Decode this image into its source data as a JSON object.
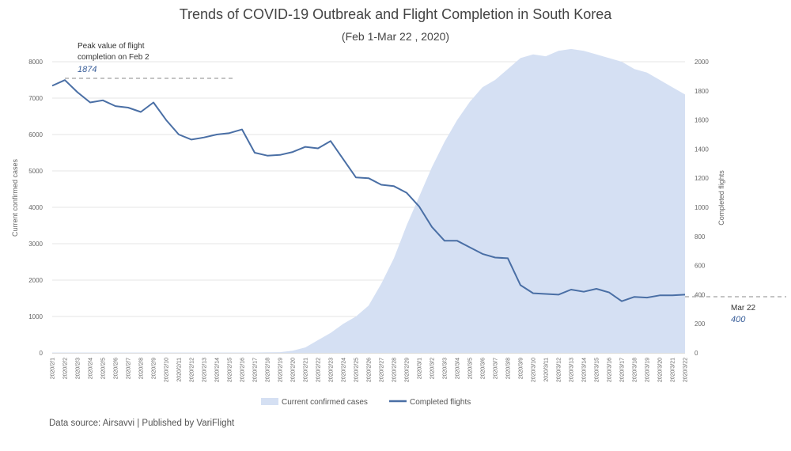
{
  "chart_data": {
    "type": "line",
    "title": "Trends of COVID-19 Outbreak and Flight Completion in South Korea",
    "subtitle": "(Feb 1-Mar 22 , 2020)",
    "y_left_label": "Current confirmed cases",
    "y_right_label": "Completed flights",
    "y_left_lim": [
      0,
      8000
    ],
    "y_right_lim": [
      0,
      2000
    ],
    "y_left_ticks": [
      "0",
      "1000",
      "2000",
      "3000",
      "4000",
      "5000",
      "6000",
      "7000",
      "8000"
    ],
    "y_right_ticks": [
      "0",
      "200",
      "400",
      "600",
      "800",
      "1000",
      "1200",
      "1400",
      "1600",
      "1800",
      "2000"
    ],
    "grid": true,
    "legend_position": "bottom",
    "x": [
      "2020/2/1",
      "2020/2/2",
      "2020/2/3",
      "2020/2/4",
      "2020/2/5",
      "2020/2/6",
      "2020/2/7",
      "2020/2/8",
      "2020/2/9",
      "2020/2/10",
      "2020/2/11",
      "2020/2/12",
      "2020/2/13",
      "2020/2/14",
      "2020/2/15",
      "2020/2/16",
      "2020/2/17",
      "2020/2/18",
      "2020/2/19",
      "2020/2/20",
      "2020/2/21",
      "2020/2/22",
      "2020/2/23",
      "2020/2/24",
      "2020/2/25",
      "2020/2/26",
      "2020/2/27",
      "2020/2/28",
      "2020/2/29",
      "2020/3/1",
      "2020/3/2",
      "2020/3/3",
      "2020/3/4",
      "2020/3/5",
      "2020/3/6",
      "2020/3/7",
      "2020/3/8",
      "2020/3/9",
      "2020/3/10",
      "2020/3/11",
      "2020/3/12",
      "2020/3/13",
      "2020/3/14",
      "2020/3/15",
      "2020/3/16",
      "2020/3/17",
      "2020/3/18",
      "2020/3/19",
      "2020/3/20",
      "2020/3/21",
      "2020/3/22"
    ],
    "series": [
      {
        "name": "Current confirmed cases",
        "type": "area",
        "axis": "left",
        "color": "#d5e0f3",
        "values": [
          10,
          10,
          10,
          10,
          10,
          10,
          10,
          10,
          10,
          10,
          10,
          10,
          10,
          10,
          10,
          10,
          10,
          15,
          20,
          60,
          150,
          350,
          550,
          800,
          1000,
          1300,
          1900,
          2600,
          3500,
          4300,
          5100,
          5800,
          6400,
          6900,
          7300,
          7500,
          7800,
          8100,
          8200,
          8150,
          8300,
          8350,
          8300,
          8200,
          8100,
          8000,
          7800,
          7700,
          7500,
          7300,
          7100
        ]
      },
      {
        "name": "Completed flights",
        "type": "line",
        "axis": "right",
        "color": "#4a6fa5",
        "values": [
          1835,
          1874,
          1790,
          1720,
          1735,
          1695,
          1685,
          1655,
          1720,
          1600,
          1500,
          1465,
          1480,
          1500,
          1510,
          1535,
          1375,
          1355,
          1360,
          1380,
          1415,
          1405,
          1455,
          1330,
          1205,
          1200,
          1155,
          1145,
          1100,
          1005,
          865,
          770,
          770,
          725,
          680,
          655,
          650,
          465,
          410,
          405,
          400,
          435,
          420,
          440,
          415,
          355,
          385,
          380,
          395,
          395,
          400
        ]
      }
    ],
    "annotations": [
      {
        "label": "Peak value of flight",
        "label2": "completion on Feb 2",
        "value": "1874"
      },
      {
        "label": "Mar 22",
        "value": "400"
      }
    ]
  },
  "footer": {
    "source": "Data source: Airsavvi  |  Published by VariFlight"
  }
}
